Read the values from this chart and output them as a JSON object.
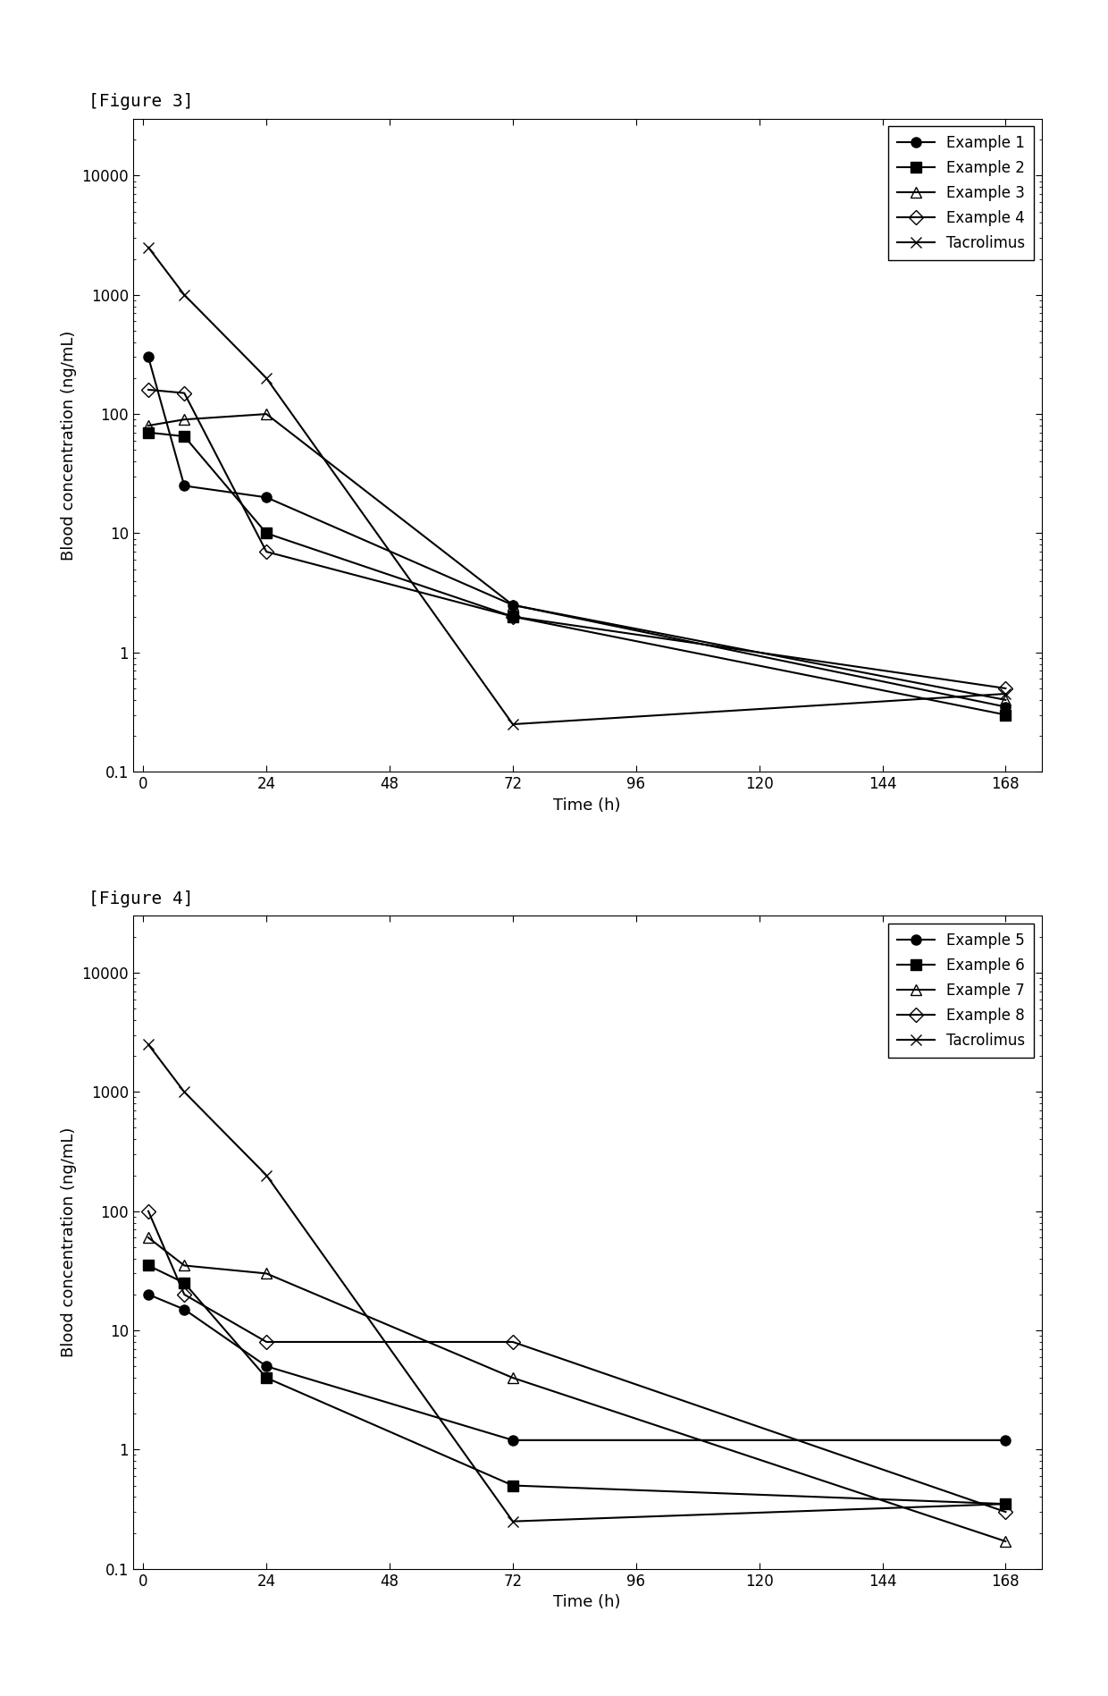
{
  "fig3": {
    "title": "[Figure 3]",
    "series": [
      {
        "label": "Example 1",
        "marker": "o",
        "fillstyle": "full",
        "x": [
          1,
          8,
          24,
          72,
          168
        ],
        "y": [
          300,
          25,
          20,
          2.5,
          0.35
        ]
      },
      {
        "label": "Example 2",
        "marker": "s",
        "fillstyle": "full",
        "x": [
          1,
          8,
          24,
          72,
          168
        ],
        "y": [
          70,
          65,
          10,
          2.0,
          0.3
        ]
      },
      {
        "label": "Example 3",
        "marker": "^",
        "fillstyle": "none",
        "x": [
          1,
          8,
          24,
          72,
          168
        ],
        "y": [
          80,
          90,
          100,
          2.5,
          0.4
        ]
      },
      {
        "label": "Example 4",
        "marker": "D",
        "fillstyle": "none",
        "x": [
          1,
          8,
          24,
          72,
          168
        ],
        "y": [
          160,
          150,
          7,
          2.0,
          0.5
        ]
      },
      {
        "label": "Tacrolimus",
        "marker": "x",
        "fillstyle": "full",
        "x": [
          1,
          8,
          24,
          72,
          168
        ],
        "y": [
          2500,
          1000,
          200,
          0.25,
          0.45
        ]
      }
    ],
    "xlabel": "Time (h)",
    "ylabel": "Blood concentration (ng/mL)",
    "ylim": [
      0.1,
      30000
    ],
    "xlim": [
      -2,
      175
    ],
    "xticks": [
      0,
      24,
      48,
      72,
      96,
      120,
      144,
      168
    ],
    "yticks": [
      0.1,
      1,
      10,
      100,
      1000,
      10000
    ]
  },
  "fig4": {
    "title": "[Figure 4]",
    "series": [
      {
        "label": "Example 5",
        "marker": "o",
        "fillstyle": "full",
        "x": [
          1,
          8,
          24,
          72,
          168
        ],
        "y": [
          20,
          15,
          5,
          1.2,
          1.2
        ]
      },
      {
        "label": "Example 6",
        "marker": "s",
        "fillstyle": "full",
        "x": [
          1,
          8,
          24,
          72,
          168
        ],
        "y": [
          35,
          25,
          4,
          0.5,
          0.35
        ]
      },
      {
        "label": "Example 7",
        "marker": "^",
        "fillstyle": "none",
        "x": [
          1,
          8,
          24,
          72,
          168
        ],
        "y": [
          60,
          35,
          30,
          4,
          0.17
        ]
      },
      {
        "label": "Example 8",
        "marker": "D",
        "fillstyle": "none",
        "x": [
          1,
          8,
          24,
          72,
          168
        ],
        "y": [
          100,
          20,
          8,
          8,
          0.3
        ]
      },
      {
        "label": "Tacrolimus",
        "marker": "x",
        "fillstyle": "full",
        "x": [
          1,
          8,
          24,
          72,
          168
        ],
        "y": [
          2500,
          1000,
          200,
          0.25,
          0.35
        ]
      }
    ],
    "xlabel": "Time (h)",
    "ylabel": "Blood concentration (ng/mL)",
    "ylim": [
      0.1,
      30000
    ],
    "xlim": [
      -2,
      175
    ],
    "xticks": [
      0,
      24,
      48,
      72,
      96,
      120,
      144,
      168
    ],
    "yticks": [
      0.1,
      1,
      10,
      100,
      1000,
      10000
    ]
  },
  "line_color": "#000000",
  "marker_size": 8,
  "linewidth": 1.5,
  "title_fontsize": 14,
  "label_fontsize": 13,
  "tick_fontsize": 12,
  "legend_fontsize": 12
}
